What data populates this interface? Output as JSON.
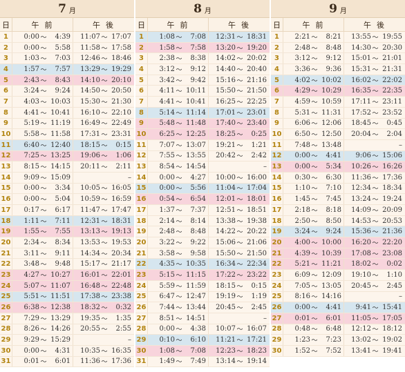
{
  "header": {
    "day_label": "日",
    "am_label": "午前",
    "pm_label": "午後",
    "tilde": "～"
  },
  "months": [
    {
      "number": "7",
      "suffix": "月",
      "rows": [
        {
          "day": "1",
          "am_s": "0:00",
          "am_e": "4:39",
          "pm_s": "11:07",
          "pm_e": "17:07",
          "hl": ""
        },
        {
          "day": "2",
          "am_s": "0:00",
          "am_e": "5:58",
          "pm_s": "11:58",
          "pm_e": "17:58",
          "hl": ""
        },
        {
          "day": "3",
          "am_s": "1:03",
          "am_e": "7:03",
          "pm_s": "12:46",
          "pm_e": "18:46",
          "hl": ""
        },
        {
          "day": "4",
          "am_s": "1:57",
          "am_e": "7:57",
          "pm_s": "13:29",
          "pm_e": "19:29",
          "hl": "blue"
        },
        {
          "day": "5",
          "am_s": "2:43",
          "am_e": "8:43",
          "pm_s": "14:10",
          "pm_e": "20:10",
          "hl": "pink"
        },
        {
          "day": "6",
          "am_s": "3:24",
          "am_e": "9:24",
          "pm_s": "14:50",
          "pm_e": "20:50",
          "hl": ""
        },
        {
          "day": "7",
          "am_s": "4:03",
          "am_e": "10:03",
          "pm_s": "15:30",
          "pm_e": "21:30",
          "hl": ""
        },
        {
          "day": "8",
          "am_s": "4:41",
          "am_e": "10:41",
          "pm_s": "16:10",
          "pm_e": "22:10",
          "hl": ""
        },
        {
          "day": "9",
          "am_s": "5:19",
          "am_e": "11:19",
          "pm_s": "16:49",
          "pm_e": "22:49",
          "hl": ""
        },
        {
          "day": "10",
          "am_s": "5:58",
          "am_e": "11:58",
          "pm_s": "17:31",
          "pm_e": "23:31",
          "hl": ""
        },
        {
          "day": "11",
          "am_s": "6:40",
          "am_e": "12:40",
          "pm_s": "18:15",
          "pm_e": "0:15",
          "hl": "blue"
        },
        {
          "day": "12",
          "am_s": "7:25",
          "am_e": "13:25",
          "pm_s": "19:06",
          "pm_e": "1:06",
          "hl": "pink"
        },
        {
          "day": "13",
          "am_s": "8:15",
          "am_e": "14:15",
          "pm_s": "20:11",
          "pm_e": "2:11",
          "hl": ""
        },
        {
          "day": "14",
          "am_s": "9:09",
          "am_e": "15:09",
          "pm_s": "",
          "pm_e": "–",
          "hl": ""
        },
        {
          "day": "15",
          "am_s": "0:00",
          "am_e": "3:34",
          "pm_s": "10:05",
          "pm_e": "16:05",
          "hl": ""
        },
        {
          "day": "16",
          "am_s": "0:00",
          "am_e": "5:04",
          "pm_s": "10:59",
          "pm_e": "16:59",
          "hl": ""
        },
        {
          "day": "17",
          "am_s": "0:17",
          "am_e": "6:17",
          "pm_s": "11:47",
          "pm_e": "17:47",
          "hl": ""
        },
        {
          "day": "18",
          "am_s": "1:11",
          "am_e": "7:11",
          "pm_s": "12:31",
          "pm_e": "18:31",
          "hl": "blue"
        },
        {
          "day": "19",
          "am_s": "1:55",
          "am_e": "7:55",
          "pm_s": "13:13",
          "pm_e": "19:13",
          "hl": "pink"
        },
        {
          "day": "20",
          "am_s": "2:34",
          "am_e": "8:34",
          "pm_s": "13:53",
          "pm_e": "19:53",
          "hl": ""
        },
        {
          "day": "21",
          "am_s": "3:11",
          "am_e": "9:11",
          "pm_s": "14:34",
          "pm_e": "20:34",
          "hl": ""
        },
        {
          "day": "22",
          "am_s": "3:48",
          "am_e": "9:48",
          "pm_s": "15:17",
          "pm_e": "21:17",
          "hl": ""
        },
        {
          "day": "23",
          "am_s": "4:27",
          "am_e": "10:27",
          "pm_s": "16:01",
          "pm_e": "22:01",
          "hl": "pink"
        },
        {
          "day": "24",
          "am_s": "5:07",
          "am_e": "11:07",
          "pm_s": "16:48",
          "pm_e": "22:48",
          "hl": "pink"
        },
        {
          "day": "25",
          "am_s": "5:51",
          "am_e": "11:51",
          "pm_s": "17:38",
          "pm_e": "23:38",
          "hl": "blue"
        },
        {
          "day": "26",
          "am_s": "6:38",
          "am_e": "12:38",
          "pm_s": "18:32",
          "pm_e": "0:32",
          "hl": "pink"
        },
        {
          "day": "27",
          "am_s": "7:29",
          "am_e": "13:29",
          "pm_s": "19:35",
          "pm_e": "1:35",
          "hl": ""
        },
        {
          "day": "28",
          "am_s": "8:26",
          "am_e": "14:26",
          "pm_s": "20:55",
          "pm_e": "2:55",
          "hl": ""
        },
        {
          "day": "29",
          "am_s": "9:29",
          "am_e": "15:29",
          "pm_s": "",
          "pm_e": "–",
          "hl": ""
        },
        {
          "day": "30",
          "am_s": "0:00",
          "am_e": "4:31",
          "pm_s": "10:35",
          "pm_e": "16:35",
          "hl": ""
        },
        {
          "day": "31",
          "am_s": "0:01",
          "am_e": "6:01",
          "pm_s": "11:36",
          "pm_e": "17:36",
          "hl": ""
        }
      ]
    },
    {
      "number": "8",
      "suffix": "月",
      "rows": [
        {
          "day": "1",
          "am_s": "1:08",
          "am_e": "7:08",
          "pm_s": "12:31",
          "pm_e": "18:31",
          "hl": "blue"
        },
        {
          "day": "2",
          "am_s": "1:58",
          "am_e": "7:58",
          "pm_s": "13:20",
          "pm_e": "19:20",
          "hl": "pink"
        },
        {
          "day": "3",
          "am_s": "2:38",
          "am_e": "8:38",
          "pm_s": "14:02",
          "pm_e": "20:02",
          "hl": ""
        },
        {
          "day": "4",
          "am_s": "3:12",
          "am_e": "9:12",
          "pm_s": "14:40",
          "pm_e": "20:40",
          "hl": ""
        },
        {
          "day": "5",
          "am_s": "3:42",
          "am_e": "9:42",
          "pm_s": "15:16",
          "pm_e": "21:16",
          "hl": ""
        },
        {
          "day": "6",
          "am_s": "4:11",
          "am_e": "10:11",
          "pm_s": "15:50",
          "pm_e": "21:50",
          "hl": ""
        },
        {
          "day": "7",
          "am_s": "4:41",
          "am_e": "10:41",
          "pm_s": "16:25",
          "pm_e": "22:25",
          "hl": ""
        },
        {
          "day": "8",
          "am_s": "5:14",
          "am_e": "11:14",
          "pm_s": "17:01",
          "pm_e": "23:01",
          "hl": "blue"
        },
        {
          "day": "9",
          "am_s": "5:48",
          "am_e": "11:48",
          "pm_s": "17:40",
          "pm_e": "23:40",
          "hl": "pink"
        },
        {
          "day": "10",
          "am_s": "6:25",
          "am_e": "12:25",
          "pm_s": "18:25",
          "pm_e": "0:25",
          "hl": "pink"
        },
        {
          "day": "11",
          "am_s": "7:07",
          "am_e": "13:07",
          "pm_s": "19:21",
          "pm_e": "1:21",
          "hl": ""
        },
        {
          "day": "12",
          "am_s": "7:55",
          "am_e": "13:55",
          "pm_s": "20:42",
          "pm_e": "2:42",
          "hl": ""
        },
        {
          "day": "13",
          "am_s": "8:54",
          "am_e": "14:54",
          "pm_s": "",
          "pm_e": "–",
          "hl": ""
        },
        {
          "day": "14",
          "am_s": "0:00",
          "am_e": "4:27",
          "pm_s": "10:00",
          "pm_e": "16:00",
          "hl": ""
        },
        {
          "day": "15",
          "am_s": "0:00",
          "am_e": "5:56",
          "pm_s": "11:04",
          "pm_e": "17:04",
          "hl": "blue"
        },
        {
          "day": "16",
          "am_s": "0:54",
          "am_e": "6:54",
          "pm_s": "12:01",
          "pm_e": "18:01",
          "hl": "pink"
        },
        {
          "day": "17",
          "am_s": "1:37",
          "am_e": "7:37",
          "pm_s": "12:51",
          "pm_e": "18:51",
          "hl": ""
        },
        {
          "day": "18",
          "am_s": "2:14",
          "am_e": "8:14",
          "pm_s": "13:38",
          "pm_e": "19:38",
          "hl": ""
        },
        {
          "day": "19",
          "am_s": "2:48",
          "am_e": "8:48",
          "pm_s": "14:22",
          "pm_e": "20:22",
          "hl": ""
        },
        {
          "day": "20",
          "am_s": "3:22",
          "am_e": "9:22",
          "pm_s": "15:06",
          "pm_e": "21:06",
          "hl": ""
        },
        {
          "day": "21",
          "am_s": "3:58",
          "am_e": "9:58",
          "pm_s": "15:50",
          "pm_e": "21:50",
          "hl": ""
        },
        {
          "day": "22",
          "am_s": "4:35",
          "am_e": "10:35",
          "pm_s": "16:34",
          "pm_e": "22:34",
          "hl": "blue"
        },
        {
          "day": "23",
          "am_s": "5:15",
          "am_e": "11:15",
          "pm_s": "17:22",
          "pm_e": "23:22",
          "hl": "pink"
        },
        {
          "day": "24",
          "am_s": "5:59",
          "am_e": "11:59",
          "pm_s": "18:15",
          "pm_e": "0:15",
          "hl": ""
        },
        {
          "day": "25",
          "am_s": "6:47",
          "am_e": "12:47",
          "pm_s": "19:19",
          "pm_e": "1:19",
          "hl": ""
        },
        {
          "day": "26",
          "am_s": "7:44",
          "am_e": "13:44",
          "pm_s": "20:45",
          "pm_e": "2:45",
          "hl": ""
        },
        {
          "day": "27",
          "am_s": "8:51",
          "am_e": "14:51",
          "pm_s": "",
          "pm_e": "–",
          "hl": ""
        },
        {
          "day": "28",
          "am_s": "0:00",
          "am_e": "4:38",
          "pm_s": "10:07",
          "pm_e": "16:07",
          "hl": ""
        },
        {
          "day": "29",
          "am_s": "0:10",
          "am_e": "6:10",
          "pm_s": "11:21",
          "pm_e": "17:21",
          "hl": "blue"
        },
        {
          "day": "30",
          "am_s": "1:08",
          "am_e": "7:08",
          "pm_s": "12:23",
          "pm_e": "18:23",
          "hl": "pink"
        },
        {
          "day": "31",
          "am_s": "1:49",
          "am_e": "7:49",
          "pm_s": "13:14",
          "pm_e": "19:14",
          "hl": ""
        }
      ]
    },
    {
      "number": "9",
      "suffix": "月",
      "rows": [
        {
          "day": "1",
          "am_s": "2:21",
          "am_e": "8:21",
          "pm_s": "13:55",
          "pm_e": "19:55",
          "hl": ""
        },
        {
          "day": "2",
          "am_s": "2:48",
          "am_e": "8:48",
          "pm_s": "14:30",
          "pm_e": "20:30",
          "hl": ""
        },
        {
          "day": "3",
          "am_s": "3:12",
          "am_e": "9:12",
          "pm_s": "15:01",
          "pm_e": "21:01",
          "hl": ""
        },
        {
          "day": "4",
          "am_s": "3:36",
          "am_e": "9:36",
          "pm_s": "15:31",
          "pm_e": "21:31",
          "hl": ""
        },
        {
          "day": "5",
          "am_s": "4:02",
          "am_e": "10:02",
          "pm_s": "16:02",
          "pm_e": "22:02",
          "hl": "blue"
        },
        {
          "day": "6",
          "am_s": "4:29",
          "am_e": "10:29",
          "pm_s": "16:35",
          "pm_e": "22:35",
          "hl": "pink"
        },
        {
          "day": "7",
          "am_s": "4:59",
          "am_e": "10:59",
          "pm_s": "17:11",
          "pm_e": "23:11",
          "hl": ""
        },
        {
          "day": "8",
          "am_s": "5:31",
          "am_e": "11:31",
          "pm_s": "17:52",
          "pm_e": "23:52",
          "hl": ""
        },
        {
          "day": "9",
          "am_s": "6:06",
          "am_e": "12:06",
          "pm_s": "18:45",
          "pm_e": "0:45",
          "hl": ""
        },
        {
          "day": "10",
          "am_s": "6:50",
          "am_e": "12:50",
          "pm_s": "20:04",
          "pm_e": "2:04",
          "hl": ""
        },
        {
          "day": "11",
          "am_s": "7:48",
          "am_e": "13:48",
          "pm_s": "",
          "pm_e": "–",
          "hl": ""
        },
        {
          "day": "12",
          "am_s": "0:00",
          "am_e": "4:41",
          "pm_s": "9:06",
          "pm_e": "15:06",
          "hl": "blue"
        },
        {
          "day": "13",
          "am_s": "0:00",
          "am_e": "5:34",
          "pm_s": "10:26",
          "pm_e": "16:26",
          "hl": "pink"
        },
        {
          "day": "14",
          "am_s": "0:30",
          "am_e": "6:30",
          "pm_s": "11:36",
          "pm_e": "17:36",
          "hl": ""
        },
        {
          "day": "15",
          "am_s": "1:10",
          "am_e": "7:10",
          "pm_s": "12:34",
          "pm_e": "18:34",
          "hl": ""
        },
        {
          "day": "16",
          "am_s": "1:45",
          "am_e": "7:45",
          "pm_s": "13:24",
          "pm_e": "19:24",
          "hl": ""
        },
        {
          "day": "17",
          "am_s": "2:18",
          "am_e": "8:18",
          "pm_s": "14:09",
          "pm_e": "20:09",
          "hl": ""
        },
        {
          "day": "18",
          "am_s": "2:50",
          "am_e": "8:50",
          "pm_s": "14:53",
          "pm_e": "20:53",
          "hl": ""
        },
        {
          "day": "19",
          "am_s": "3:24",
          "am_e": "9:24",
          "pm_s": "15:36",
          "pm_e": "21:36",
          "hl": "blue"
        },
        {
          "day": "20",
          "am_s": "4:00",
          "am_e": "10:00",
          "pm_s": "16:20",
          "pm_e": "22:20",
          "hl": "pink"
        },
        {
          "day": "21",
          "am_s": "4:39",
          "am_e": "10:39",
          "pm_s": "17:08",
          "pm_e": "23:08",
          "hl": "pink"
        },
        {
          "day": "22",
          "am_s": "5:21",
          "am_e": "11:21",
          "pm_s": "18:02",
          "pm_e": "0:02",
          "hl": "pink"
        },
        {
          "day": "23",
          "am_s": "6:09",
          "am_e": "12:09",
          "pm_s": "19:10",
          "pm_e": "1:10",
          "hl": ""
        },
        {
          "day": "24",
          "am_s": "7:05",
          "am_e": "13:05",
          "pm_s": "20:45",
          "pm_e": "2:45",
          "hl": ""
        },
        {
          "day": "25",
          "am_s": "8:16",
          "am_e": "14:16",
          "pm_s": "",
          "pm_e": "–",
          "hl": ""
        },
        {
          "day": "26",
          "am_s": "0:00",
          "am_e": "4:41",
          "pm_s": "9:41",
          "pm_e": "15:41",
          "hl": "blue"
        },
        {
          "day": "27",
          "am_s": "0:01",
          "am_e": "6:01",
          "pm_s": "11:05",
          "pm_e": "17:05",
          "hl": "pink"
        },
        {
          "day": "28",
          "am_s": "0:48",
          "am_e": "6:48",
          "pm_s": "12:12",
          "pm_e": "18:12",
          "hl": ""
        },
        {
          "day": "29",
          "am_s": "1:23",
          "am_e": "7:23",
          "pm_s": "13:02",
          "pm_e": "19:02",
          "hl": ""
        },
        {
          "day": "30",
          "am_s": "1:52",
          "am_e": "7:52",
          "pm_s": "13:41",
          "pm_e": "19:41",
          "hl": ""
        }
      ]
    }
  ]
}
